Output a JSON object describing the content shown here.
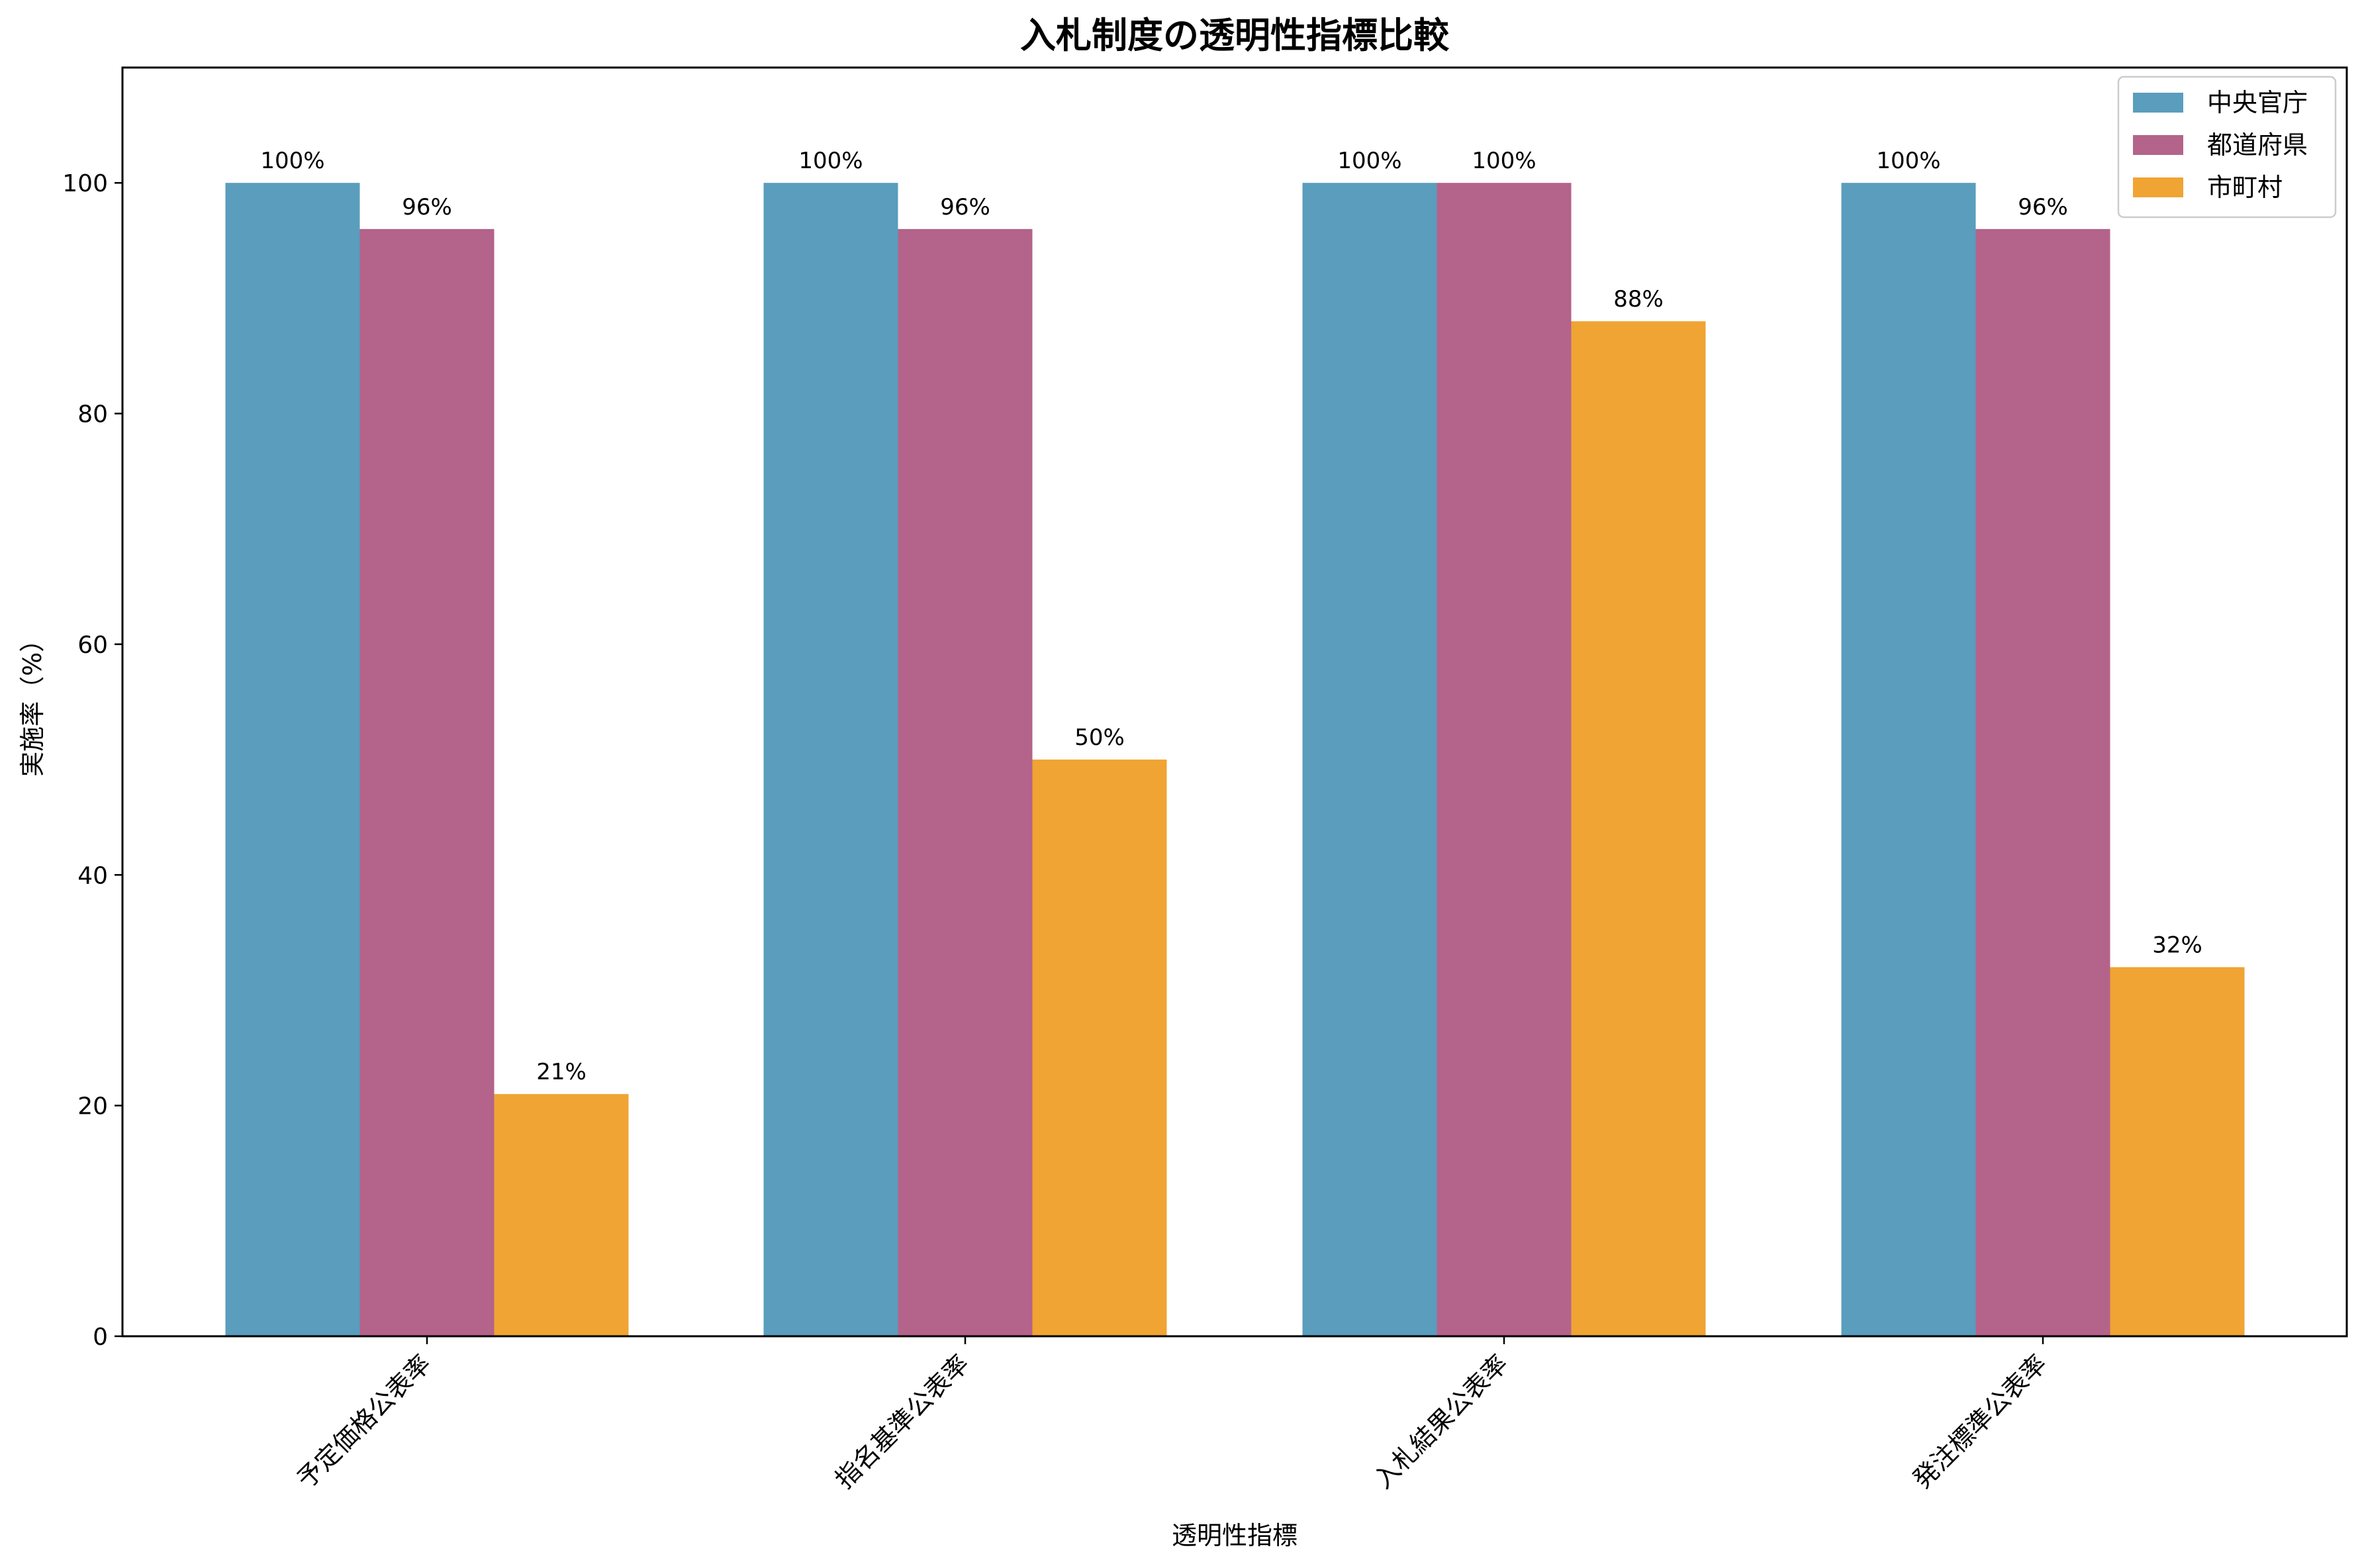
{
  "chart_data": {
    "type": "bar",
    "title": "入札制度の透明性指標比較",
    "xlabel": "透明性指標",
    "ylabel": "実施率（%）",
    "categories": [
      "予定価格公表率",
      "指名基準公表率",
      "入札結果公表率",
      "発注標準公表率"
    ],
    "series": [
      {
        "name": "中央官庁",
        "color": "#5a9dbd",
        "values": [
          100,
          100,
          100,
          100
        ],
        "labels": [
          "100%",
          "100%",
          "100%",
          "100%"
        ]
      },
      {
        "name": "都道府県",
        "color": "#b4638a",
        "values": [
          96,
          96,
          100,
          96
        ],
        "labels": [
          "96%",
          "96%",
          "100%",
          "96%"
        ]
      },
      {
        "name": "市町村",
        "color": "#f0a433",
        "values": [
          21,
          50,
          88,
          32
        ],
        "labels": [
          "21%",
          "50%",
          "88%",
          "32%"
        ]
      }
    ],
    "ylim": [
      0,
      110
    ],
    "yticks": [
      0,
      20,
      40,
      60,
      80,
      100
    ],
    "ytick_labels": [
      "0",
      "20",
      "40",
      "60",
      "80",
      "100"
    ],
    "grid": false,
    "legend_position": "top-right"
  }
}
